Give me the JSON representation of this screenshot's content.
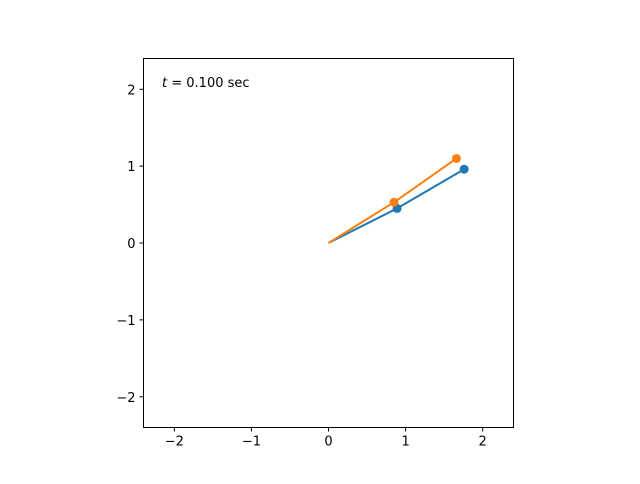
{
  "chart_data": {
    "type": "line",
    "title": "",
    "xlabel": "",
    "ylabel": "",
    "xlim": [
      -2.4,
      2.4
    ],
    "ylim": [
      -2.4,
      2.4
    ],
    "grid": false,
    "xticks": [
      -2,
      -1,
      0,
      1,
      2
    ],
    "yticks": [
      -2,
      -1,
      0,
      1,
      2
    ],
    "xtick_labels": [
      "−2",
      "−1",
      "0",
      "1",
      "2"
    ],
    "ytick_labels": [
      "−2",
      "−1",
      "0",
      "1",
      "2"
    ],
    "annotation": {
      "var": "t",
      "text": " = 0.100 sec"
    },
    "series": [
      {
        "color": "#1f77b4",
        "x": [
          0,
          0.89,
          1.76
        ],
        "y": [
          0,
          0.45,
          0.96
        ]
      },
      {
        "color": "#ff7f0e",
        "x": [
          0,
          0.85,
          1.66
        ],
        "y": [
          0,
          0.53,
          1.1
        ]
      }
    ]
  }
}
